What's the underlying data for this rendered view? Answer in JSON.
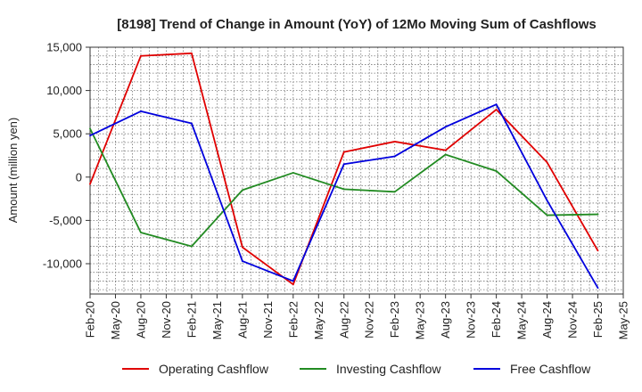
{
  "chart_data": {
    "type": "line",
    "title": "[8198]  Trend of Change in Amount (YoY) of 12Mo Moving Sum of Cashflows",
    "xlabel": "",
    "ylabel": "Amount (million yen)",
    "ylim": [
      -13500,
      15000
    ],
    "yticks": [
      15000,
      10000,
      5000,
      0,
      -5000,
      -10000
    ],
    "ytick_labels": [
      "15,000",
      "10,000",
      "5,000",
      "0",
      "-5,000",
      "-10,000"
    ],
    "xtick_labels": [
      "Feb-20",
      "May-20",
      "Aug-20",
      "Nov-20",
      "Feb-21",
      "May-21",
      "Aug-21",
      "Nov-21",
      "Feb-22",
      "May-22",
      "Aug-22",
      "Nov-22",
      "Feb-23",
      "May-23",
      "Aug-23",
      "Nov-23",
      "Feb-24",
      "May-24",
      "Aug-24",
      "Nov-24",
      "Feb-25",
      "May-25"
    ],
    "x_index_range": [
      0,
      21
    ],
    "grid": true,
    "legend_position": "bottom",
    "series": [
      {
        "name": "Operating Cashflow",
        "color": "#e00000",
        "x_index": [
          0,
          2,
          4,
          6,
          8,
          10,
          12,
          14,
          16,
          18,
          20
        ],
        "values": [
          -800,
          14000,
          14300,
          -8100,
          -12400,
          2900,
          4100,
          3100,
          7800,
          1700,
          -8500
        ]
      },
      {
        "name": "Investing Cashflow",
        "color": "#228b22",
        "x_index": [
          0,
          2,
          4,
          6,
          8,
          10,
          12,
          14,
          16,
          18,
          20
        ],
        "values": [
          5600,
          -6400,
          -8000,
          -1500,
          500,
          -1400,
          -1700,
          2600,
          700,
          -4400,
          -4300
        ]
      },
      {
        "name": "Free Cashflow",
        "color": "#0000dd",
        "x_index": [
          0,
          2,
          4,
          6,
          8,
          10,
          12,
          14,
          16,
          18,
          20
        ],
        "values": [
          4800,
          7600,
          6200,
          -9700,
          -12000,
          1500,
          2400,
          5800,
          8400,
          -2700,
          -12800
        ]
      }
    ]
  }
}
